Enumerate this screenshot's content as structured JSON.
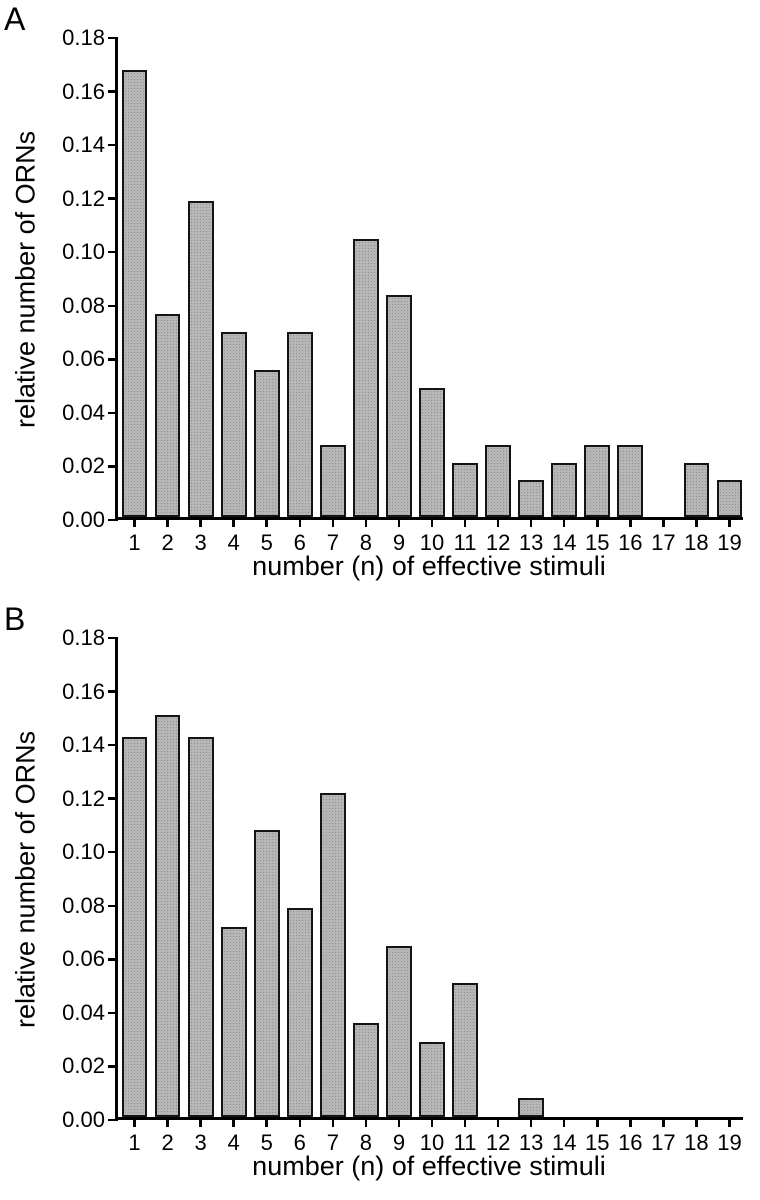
{
  "figure_title": "",
  "chart_data": [
    {
      "type": "bar",
      "panel_label": "A",
      "title": "",
      "xlabel": "number (n) of effective stimuli",
      "ylabel": "relative number of ORNs",
      "categories": [
        "1",
        "2",
        "3",
        "4",
        "5",
        "6",
        "7",
        "8",
        "9",
        "10",
        "11",
        "12",
        "13",
        "14",
        "15",
        "16",
        "17",
        "18",
        "19"
      ],
      "values": [
        0.167,
        0.076,
        0.118,
        0.069,
        0.055,
        0.069,
        0.027,
        0.104,
        0.083,
        0.048,
        0.02,
        0.027,
        0.014,
        0.02,
        0.027,
        0.027,
        0,
        0.02,
        0.014
      ],
      "ylim": [
        0,
        0.18
      ],
      "ytick_step": 0.02,
      "grid": "off",
      "legend": "none",
      "bar_color": "#b7b7b7",
      "bar_border_color": "#141414"
    },
    {
      "type": "bar",
      "panel_label": "B",
      "title": "",
      "xlabel": "number (n) of effective stimuli",
      "ylabel": "relative number of ORNs",
      "categories": [
        "1",
        "2",
        "3",
        "4",
        "5",
        "6",
        "7",
        "8",
        "9",
        "10",
        "11",
        "12",
        "13",
        "14",
        "15",
        "16",
        "17",
        "18",
        "19"
      ],
      "values": [
        0.142,
        0.15,
        0.142,
        0.071,
        0.107,
        0.078,
        0.121,
        0.035,
        0.064,
        0.028,
        0.05,
        0,
        0.007,
        0,
        0,
        0,
        0,
        0,
        0
      ],
      "ylim": [
        0,
        0.18
      ],
      "ytick_step": 0.02,
      "grid": "off",
      "legend": "none",
      "bar_color": "#b7b7b7",
      "bar_border_color": "#141414"
    }
  ]
}
